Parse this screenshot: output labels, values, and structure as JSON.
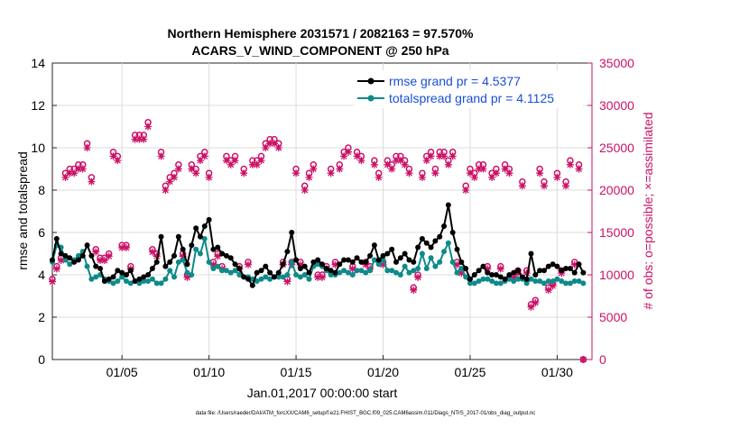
{
  "chart_data": {
    "type": "line",
    "title": "Northern Hemisphere 2031571 / 2082163 = 97.570%",
    "subtitle": "ACARS_V_WIND_COMPONENT @ 250 hPa",
    "xlabel": "Jan.01,2017 00:00:00 start",
    "ylabel_left": "rmse and totalspread",
    "ylabel_right": "# of obs: o=possible; ×=assimilated",
    "footnote": "data file: /Users/raeder/DAI/ATM_forcXX/CAM6_setup/f.e21.FHIST_BGC.f09_025.CAM6assim.011/Diags_NTrS_2017-01/obs_diag_output.nc",
    "xlim": [
      1.0,
      32.0
    ],
    "ylim_left": [
      0,
      14
    ],
    "ylim_right": [
      0,
      35000
    ],
    "x_ticks": [
      {
        "v": 5,
        "label": "01/05"
      },
      {
        "v": 10,
        "label": "01/10"
      },
      {
        "v": 15,
        "label": "01/15"
      },
      {
        "v": 20,
        "label": "01/20"
      },
      {
        "v": 25,
        "label": "01/25"
      },
      {
        "v": 30,
        "label": "01/30"
      }
    ],
    "y_ticks_left": [
      "0",
      "2",
      "4",
      "6",
      "8",
      "10",
      "12",
      "14"
    ],
    "y_ticks_right": [
      "0",
      "5000",
      "10000",
      "15000",
      "20000",
      "25000",
      "30000",
      "35000"
    ],
    "legend": [
      {
        "label": "rmse grand pr = 4.5377",
        "color": "#000000"
      },
      {
        "label": "totalspread grand pr = 4.1125",
        "color": "#0f8a8a"
      }
    ],
    "colors": {
      "rmse": "#000000",
      "spread": "#0f8a8a",
      "obs": "#cc1166"
    },
    "x": [
      1.0,
      1.25,
      1.5,
      1.75,
      2.0,
      2.25,
      2.5,
      2.75,
      3.0,
      3.25,
      3.5,
      3.75,
      4.0,
      4.25,
      4.5,
      4.75,
      5.0,
      5.25,
      5.5,
      5.75,
      6.0,
      6.25,
      6.5,
      6.75,
      7.0,
      7.25,
      7.5,
      7.75,
      8.0,
      8.25,
      8.5,
      8.75,
      9.0,
      9.25,
      9.5,
      9.75,
      10.0,
      10.25,
      10.5,
      10.75,
      11.0,
      11.25,
      11.5,
      11.75,
      12.0,
      12.25,
      12.5,
      12.75,
      13.0,
      13.25,
      13.5,
      13.75,
      14.0,
      14.25,
      14.5,
      14.75,
      15.0,
      15.25,
      15.5,
      15.75,
      16.0,
      16.25,
      16.5,
      16.75,
      17.0,
      17.25,
      17.5,
      17.75,
      18.0,
      18.25,
      18.5,
      18.75,
      19.0,
      19.25,
      19.5,
      19.75,
      20.0,
      20.25,
      20.5,
      20.75,
      21.0,
      21.25,
      21.5,
      21.75,
      22.0,
      22.25,
      22.5,
      22.75,
      23.0,
      23.25,
      23.5,
      23.75,
      24.0,
      24.25,
      24.5,
      24.75,
      25.0,
      25.25,
      25.5,
      25.75,
      26.0,
      26.25,
      26.5,
      26.75,
      27.0,
      27.25,
      27.5,
      27.75,
      28.0,
      28.25,
      28.5,
      28.75,
      29.0,
      29.25,
      29.5,
      29.75,
      30.0,
      30.25,
      30.5,
      30.75,
      31.0,
      31.25,
      31.5
    ],
    "series": [
      {
        "name": "rmse",
        "values": [
          4.7,
          5.7,
          5.0,
          4.9,
          4.8,
          4.6,
          4.7,
          4.9,
          5.4,
          4.9,
          4.4,
          4.3,
          3.7,
          3.8,
          3.9,
          4.2,
          4.1,
          4.0,
          4.2,
          3.7,
          3.8,
          3.9,
          4.0,
          4.3,
          4.6,
          5.8,
          4.4,
          4.6,
          4.9,
          5.8,
          5.2,
          4.5,
          5.4,
          6.2,
          5.8,
          6.3,
          6.6,
          5.2,
          5.3,
          5.0,
          4.9,
          4.8,
          4.5,
          4.3,
          3.9,
          3.8,
          3.5,
          4.1,
          4.2,
          4.4,
          4.1,
          3.9,
          4.1,
          4.5,
          5.1,
          6.0,
          4.7,
          4.3,
          4.4,
          4.1,
          4.6,
          4.7,
          4.5,
          4.3,
          4.2,
          4.1,
          4.5,
          4.7,
          4.7,
          4.6,
          4.8,
          4.6,
          4.6,
          4.9,
          5.4,
          4.7,
          4.9,
          5.0,
          5.2,
          4.6,
          4.8,
          5.0,
          4.7,
          4.6,
          5.3,
          5.7,
          5.5,
          5.3,
          5.6,
          5.8,
          6.3,
          7.3,
          6.0,
          5.2,
          4.6,
          4.3,
          3.8,
          4.0,
          4.2,
          4.4,
          4.1,
          4.0,
          4.0,
          3.9,
          3.8,
          4.0,
          4.1,
          4.2,
          3.9,
          3.8,
          5.0,
          4.0,
          4.2,
          4.2,
          4.4,
          4.5,
          4.4,
          4.2,
          4.3,
          4.3,
          4.1,
          4.5,
          4.1
        ]
      },
      {
        "name": "totalspread",
        "values": [
          4.6,
          5.4,
          5.3,
          4.7,
          4.5,
          4.7,
          4.9,
          5.1,
          4.4,
          3.8,
          3.9,
          4.0,
          3.8,
          3.7,
          3.6,
          3.7,
          3.9,
          3.7,
          3.6,
          3.7,
          3.6,
          3.7,
          3.7,
          3.8,
          3.6,
          3.6,
          3.8,
          4.2,
          3.9,
          4.6,
          4.7,
          4.1,
          4.0,
          5.2,
          5.0,
          5.7,
          4.6,
          4.3,
          4.4,
          4.2,
          4.2,
          4.1,
          4.2,
          4.0,
          3.9,
          3.9,
          3.8,
          3.7,
          3.8,
          3.9,
          3.8,
          3.9,
          3.9,
          3.9,
          4.0,
          4.6,
          4.0,
          3.9,
          4.0,
          3.8,
          4.4,
          4.5,
          4.4,
          4.2,
          4.0,
          4.0,
          4.1,
          4.2,
          4.1,
          4.0,
          4.2,
          4.2,
          4.1,
          4.2,
          4.7,
          4.5,
          4.7,
          4.2,
          4.2,
          4.1,
          4.0,
          4.4,
          4.1,
          4.2,
          4.3,
          5.0,
          4.3,
          4.8,
          4.4,
          4.6,
          5.1,
          5.5,
          4.6,
          4.1,
          4.3,
          3.9,
          3.6,
          3.6,
          3.7,
          3.8,
          3.8,
          3.7,
          3.6,
          3.6,
          3.7,
          3.8,
          3.7,
          3.8,
          3.8,
          3.6,
          3.8,
          3.7,
          3.7,
          3.6,
          3.7,
          3.7,
          3.8,
          3.7,
          3.6,
          3.6,
          3.7,
          3.7,
          3.6
        ]
      },
      {
        "name": "obs_possible",
        "values": [
          9500,
          11000,
          12000,
          22000,
          22500,
          22500,
          23000,
          23000,
          25500,
          21500,
          13000,
          12000,
          12000,
          12500,
          24500,
          24000,
          13500,
          13500,
          11000,
          26500,
          26500,
          26500,
          28000,
          13000,
          12500,
          24500,
          20500,
          21500,
          22000,
          23000,
          12500,
          10000,
          23000,
          22500,
          24000,
          24500,
          22000,
          11500,
          12500,
          11000,
          24000,
          23500,
          24000,
          11000,
          22500,
          11500,
          23500,
          23500,
          24000,
          25500,
          26000,
          26000,
          25500,
          11500,
          9500,
          11500,
          22500,
          11500,
          20500,
          22000,
          23000,
          10000,
          10000,
          11000,
          22500,
          11500,
          23000,
          24500,
          25000,
          11000,
          24500,
          24000,
          11500,
          11000,
          23500,
          22000,
          11500,
          23500,
          23000,
          24000,
          24000,
          23500,
          22500,
          8500,
          10000,
          22000,
          24000,
          24500,
          22500,
          24500,
          24500,
          23500,
          24500,
          11500,
          10500,
          20500,
          22500,
          22000,
          23000,
          23000,
          11000,
          22000,
          22500,
          11000,
          23000,
          22500,
          10000,
          10500,
          21000,
          10500,
          6500,
          7000,
          22500,
          21000,
          8500,
          9000,
          22000,
          10500,
          21000,
          23500,
          11500,
          23000,
          0
        ]
      },
      {
        "name": "obs_assimilated",
        "values": [
          9200,
          10700,
          11700,
          21500,
          22000,
          22000,
          22500,
          22500,
          25000,
          21000,
          12700,
          11700,
          11700,
          12200,
          24000,
          23500,
          13200,
          13200,
          10700,
          26000,
          26000,
          26000,
          27500,
          12700,
          12200,
          24000,
          20000,
          21000,
          21500,
          22500,
          12200,
          9700,
          22500,
          22000,
          23500,
          24000,
          21500,
          11200,
          12200,
          10700,
          23500,
          23000,
          23500,
          10700,
          22000,
          11200,
          23000,
          23000,
          23500,
          25000,
          25500,
          25500,
          25000,
          11200,
          9200,
          11200,
          22000,
          11200,
          20000,
          21500,
          22500,
          9700,
          9700,
          10700,
          22000,
          11200,
          22500,
          24000,
          24500,
          10700,
          24000,
          23500,
          11200,
          10700,
          23000,
          21500,
          11200,
          23000,
          22500,
          23500,
          23500,
          23000,
          22000,
          8200,
          9700,
          21500,
          23500,
          24000,
          22000,
          24000,
          24000,
          23000,
          24000,
          11200,
          10200,
          20000,
          22000,
          21500,
          22500,
          22500,
          10700,
          21500,
          22000,
          10700,
          22500,
          22000,
          9700,
          10200,
          20500,
          10200,
          6200,
          6700,
          22000,
          20500,
          8200,
          8700,
          21500,
          10200,
          20500,
          23000,
          11200,
          22500,
          0
        ]
      }
    ]
  }
}
